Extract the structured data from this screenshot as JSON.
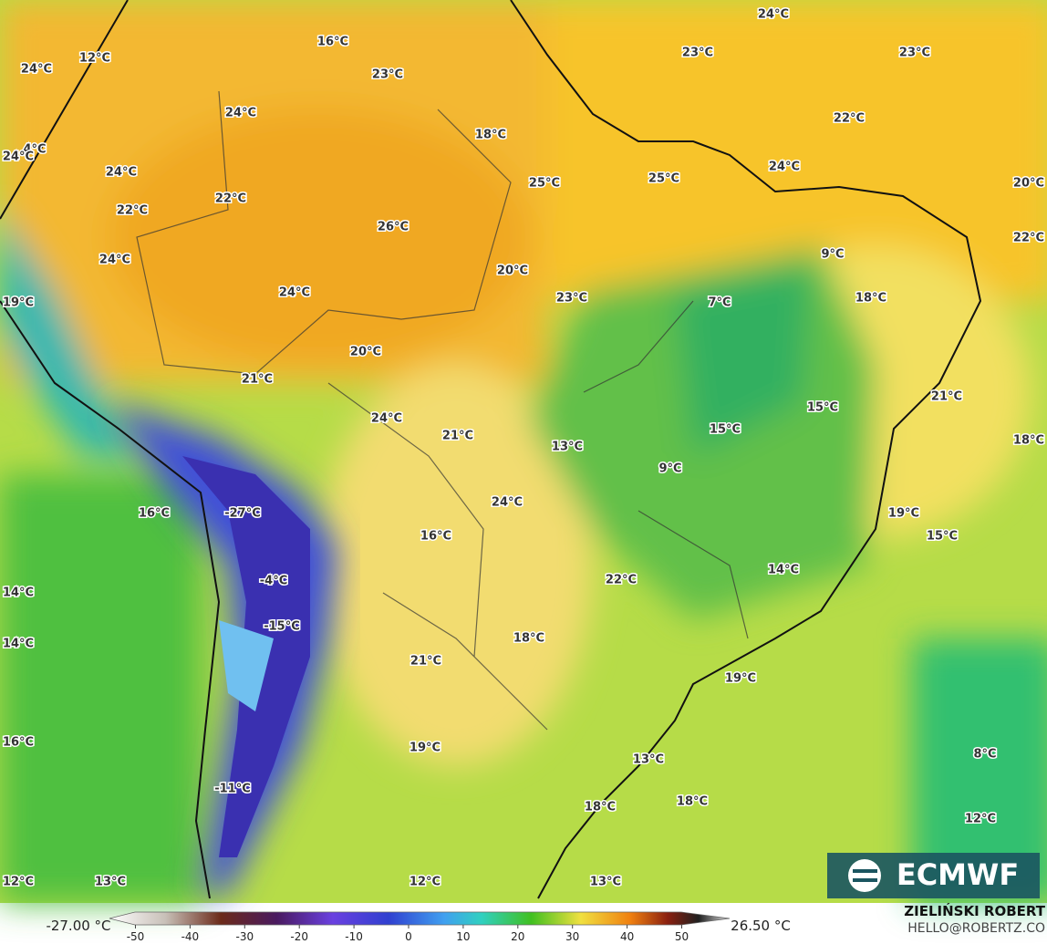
{
  "map": {
    "labels": [
      "24°C",
      "16°C",
      "12°C",
      "23°C",
      "23°C",
      "23°C",
      "24°C",
      "24°C",
      "22°C",
      "18°C",
      "4°C",
      "24°C",
      "24°C",
      "24°C",
      "25°C",
      "25°C",
      "20°C",
      "22°C",
      "22°C",
      "26°C",
      "22°C",
      "9°C",
      "24°C",
      "20°C",
      "7°C",
      "24°C",
      "23°C",
      "18°C",
      "19°C",
      "20°C",
      "21°C",
      "21°C",
      "15°C",
      "24°C",
      "15°C",
      "21°C",
      "13°C",
      "18°C",
      "9°C",
      "24°C",
      "-27°C",
      "16°C",
      "19°C",
      "15°C",
      "16°C",
      "-4°C",
      "14°C",
      "22°C",
      "14°C",
      "-15°C",
      "18°C",
      "14°C",
      "21°C",
      "19°C",
      "16°C",
      "19°C",
      "8°C",
      "13°C",
      "-11°C",
      "18°C",
      "18°C",
      "12°C",
      "12°C",
      "13°C",
      "12°C",
      "13°C"
    ]
  },
  "colorbar": {
    "min_label": "-27.00 °C",
    "max_label": "26.50 °C",
    "ticks": [
      -50,
      -40,
      -30,
      -20,
      -10,
      0,
      10,
      20,
      30,
      40,
      50
    ]
  },
  "logo": "ECMWF",
  "credit": {
    "author": "ZIELIŃSKI ROBERT",
    "email": "HELLO@ROBERTZ.CO"
  }
}
